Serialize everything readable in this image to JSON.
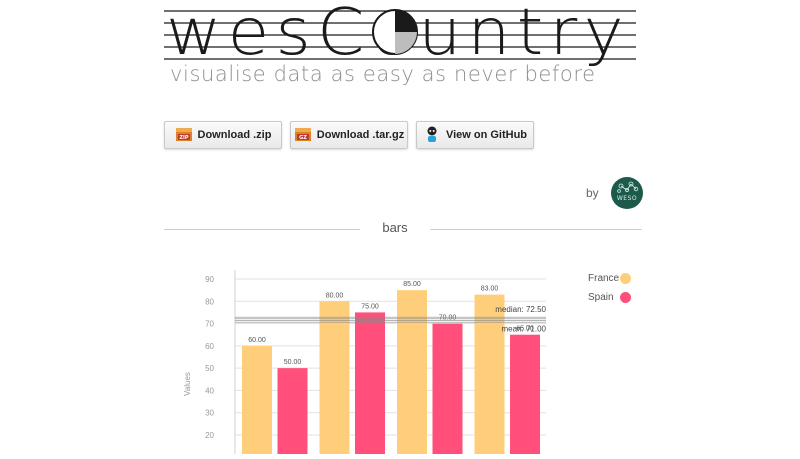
{
  "header": {
    "logo": "wesCountry",
    "tagline": "visualise data as easy as never before"
  },
  "buttons": [
    {
      "label": "Download .zip",
      "icon": "zip-archive-icon",
      "badge": "ZIP"
    },
    {
      "label": "Download .tar.gz",
      "icon": "targz-archive-icon",
      "badge": "GZ"
    },
    {
      "label": "View on GitHub",
      "icon": "octocat-icon"
    }
  ],
  "credit": {
    "by": "by",
    "avatar_text": "WESO",
    "avatar_color": "#1e5a4c"
  },
  "section": {
    "title": "bars"
  },
  "chart_data": {
    "type": "bar",
    "ylabel": "Values",
    "yticks": [
      20,
      30,
      40,
      50,
      60,
      70,
      80,
      90
    ],
    "ylim": [
      15,
      92
    ],
    "grid": true,
    "legend_position": "top-right",
    "series": [
      {
        "name": "France",
        "color": "#ffce7a",
        "values": [
          60,
          80,
          85,
          83
        ],
        "labels": [
          "60.00",
          "80.00",
          "85.00",
          "83.00"
        ]
      },
      {
        "name": "Spain",
        "color": "#ff4f7a",
        "values": [
          50,
          75,
          70,
          65
        ],
        "labels": [
          "50.00",
          "75.00",
          "70.00",
          "65.00"
        ]
      }
    ],
    "reference_lines": [
      {
        "label": "median: 72.50",
        "value": 72.5
      },
      {
        "label": "mean: 71.00",
        "value": 71
      }
    ]
  }
}
